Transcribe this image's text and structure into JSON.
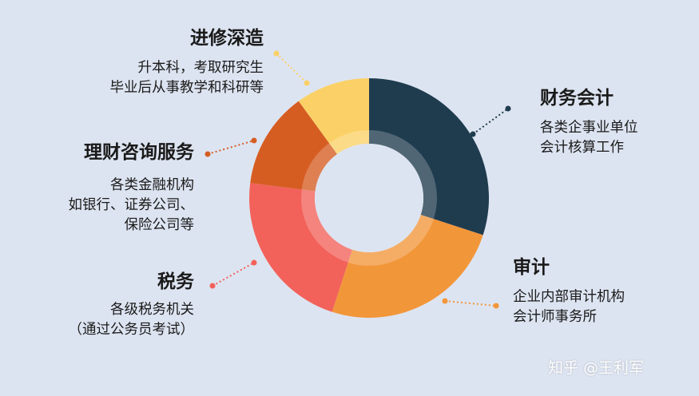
{
  "colors": {
    "background": "#dde4f1",
    "accounting": "#1f3c4f",
    "audit": "#f2963a",
    "tax": "#f2625a",
    "finance_service": "#d65d22",
    "further_study": "#fbd167"
  },
  "segments": [
    {
      "id": "accounting",
      "title": "财务会计",
      "lines": [
        "各类企事业单位",
        "会计核算工作"
      ],
      "value": 30,
      "color": "#1f3c4f"
    },
    {
      "id": "audit",
      "title": "审计",
      "lines": [
        "企业内部审计机构",
        "会计师事务所"
      ],
      "value": 25,
      "color": "#f2963a"
    },
    {
      "id": "tax",
      "title": "税务",
      "lines": [
        "各级税务机关",
        "（通过公务员考试）"
      ],
      "value": 22,
      "color": "#f2625a"
    },
    {
      "id": "finance_service",
      "title": "理财咨询服务",
      "lines": [
        "各类金融机构",
        "如银行、证券公司、",
        "保险公司等"
      ],
      "value": 13,
      "color": "#d65d22"
    },
    {
      "id": "further_study",
      "title": "进修深造",
      "lines": [
        "升本科，考取研究生",
        "毕业后从事教学和科研等"
      ],
      "value": 10,
      "color": "#fbd167"
    }
  ],
  "watermark": "知乎 @王利军"
}
